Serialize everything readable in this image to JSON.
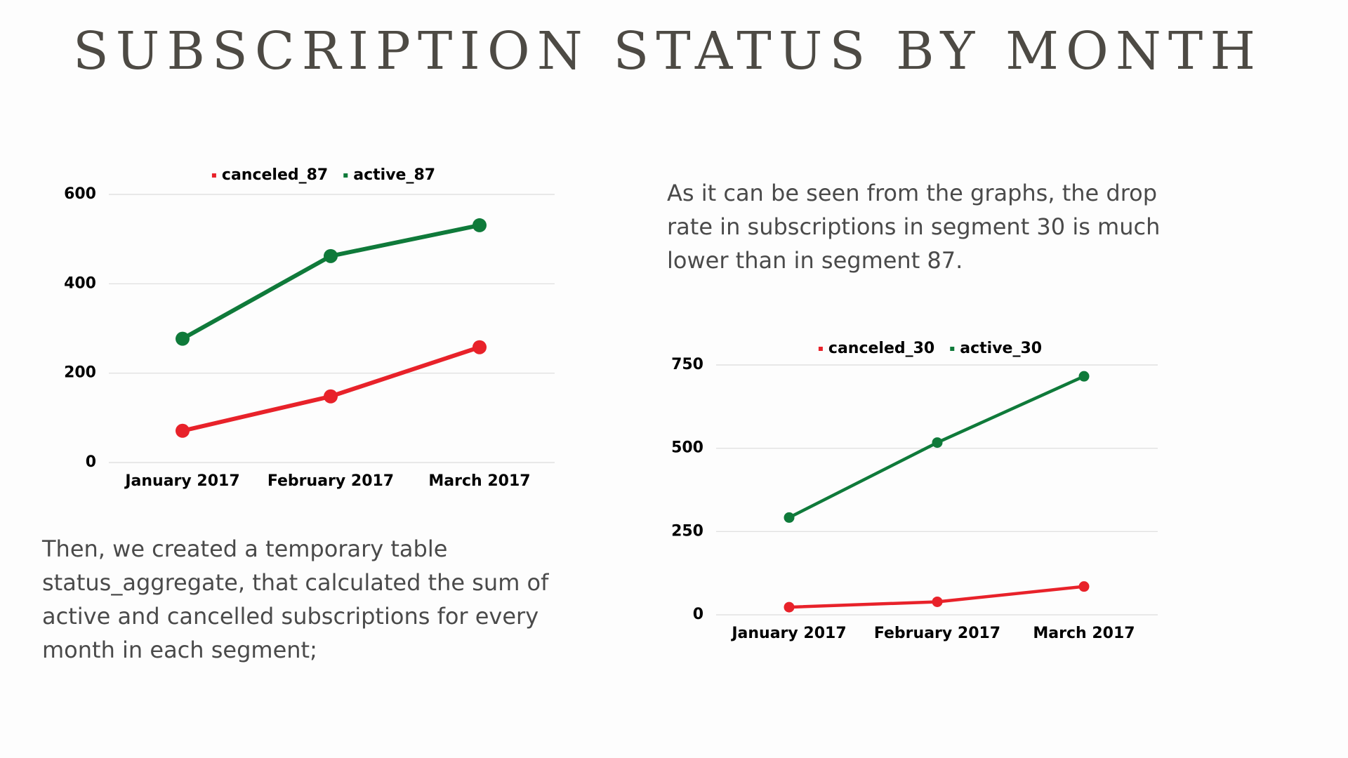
{
  "title": "SUBSCRIPTION STATUS BY MONTH",
  "paragraphs": [
    [
      "As it can be seen from the graphs, the drop",
      "rate in subscriptions in segment 30 is much",
      "lower than in segment 87."
    ],
    [
      "Then, we created a temporary table",
      "status_aggregate, that calculated the sum of",
      "active and cancelled subscriptions for every",
      "month in each segment;"
    ]
  ],
  "chart_data": [
    {
      "type": "line",
      "categories": [
        "January 2017",
        "February 2017",
        "March 2017"
      ],
      "series": [
        {
          "name": "canceled_87",
          "color": "#e8222a",
          "values": [
            71,
            148,
            258
          ]
        },
        {
          "name": "active_87",
          "color": "#0f7a3a",
          "values": [
            277,
            462,
            531
          ]
        }
      ],
      "ylim": [
        0,
        600
      ],
      "yticks": [
        0,
        200,
        400,
        600
      ],
      "grid": true,
      "legend": "top"
    },
    {
      "type": "line",
      "categories": [
        "January 2017",
        "February 2017",
        "March 2017"
      ],
      "series": [
        {
          "name": "canceled_30",
          "color": "#e8222a",
          "values": [
            23,
            39,
            85
          ]
        },
        {
          "name": "active_30",
          "color": "#0f7a3a",
          "values": [
            292,
            517,
            716
          ]
        }
      ],
      "ylim": [
        0,
        750
      ],
      "yticks": [
        0,
        250,
        500,
        750
      ],
      "grid": true,
      "legend": "top"
    }
  ]
}
